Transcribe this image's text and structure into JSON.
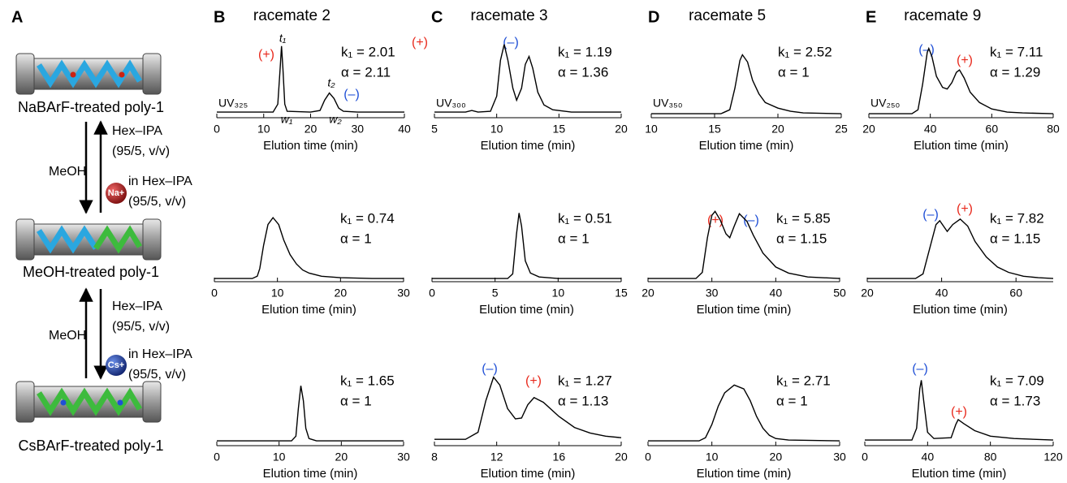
{
  "diagram": {
    "panel": "A",
    "states": [
      "NaBArF-treated poly-1",
      "MeOH-treated poly-1",
      "CsBArF-treated poly-1"
    ],
    "upper_steps": {
      "down": "MeOH",
      "up_line1": "Hex–IPA",
      "up_line2": "(95/5, v/v)",
      "ion": "Na+",
      "ion_line1": "in Hex–IPA",
      "ion_line2": "(95/5, v/v)"
    },
    "lower_steps": {
      "up": "MeOH",
      "down_line1": "Hex–IPA",
      "down_line2": "(95/5, v/v)",
      "ion": "Cs+",
      "ion_line1": "in Hex–IPA",
      "ion_line2": "(95/5, v/v)"
    }
  },
  "chart_data": [
    {
      "type": "line",
      "panel": "B",
      "title": "racemate 2",
      "x_label": "Elution time (min)",
      "detector": "UV₃₂₅",
      "k1_label": "k₁ = 2.01",
      "alpha_label": "α = 2.11",
      "peak_labels": [
        {
          "text": "(+)",
          "color": "#e8291c"
        },
        {
          "text": "(–)",
          "color": "#1f4fd6"
        }
      ],
      "peak_marks": [
        "t₁",
        "t₂",
        "w₁",
        "w₂"
      ],
      "xlim": [
        0,
        40
      ],
      "xticks": [
        0,
        10,
        20,
        30,
        40
      ],
      "ylim": [
        0,
        100
      ],
      "color": "#000000",
      "x": [
        0,
        8,
        12,
        13,
        13.5,
        13.8,
        14.1,
        14.5,
        15,
        20,
        22,
        23,
        24,
        25,
        26,
        27,
        30,
        40
      ],
      "values": [
        5,
        5,
        5,
        15,
        60,
        88,
        60,
        15,
        6,
        5,
        7,
        20,
        29,
        22,
        10,
        6,
        5,
        5
      ]
    },
    {
      "type": "line",
      "panel": "C",
      "title": "racemate 3",
      "x_label": "Elution time (min)",
      "detector": "UV₃₀₀",
      "k1_label": "k₁ = 1.19",
      "alpha_label": "α = 1.36",
      "peak_labels": [
        {
          "text": "(+)",
          "color": "#e8291c"
        },
        {
          "text": "(–)",
          "color": "#1f4fd6"
        }
      ],
      "xlim": [
        5,
        20
      ],
      "xticks": [
        5,
        10,
        15,
        20
      ],
      "ylim": [
        0,
        100
      ],
      "color": "#000000",
      "x": [
        5,
        7.5,
        8,
        8.5,
        9.5,
        10,
        10.3,
        10.6,
        10.9,
        11.3,
        11.6,
        12,
        12.3,
        12.6,
        12.9,
        13.3,
        13.8,
        14.5,
        16,
        20
      ],
      "values": [
        5,
        5,
        7,
        5,
        6,
        25,
        70,
        90,
        70,
        35,
        20,
        35,
        65,
        75,
        60,
        30,
        14,
        8,
        5,
        5
      ]
    },
    {
      "type": "line",
      "panel": "D",
      "title": "racemate 5",
      "x_label": "Elution time (min)",
      "detector": "UV₃₅₀",
      "k1_label": "k₁ = 2.52",
      "alpha_label": "α = 1",
      "xlim": [
        10,
        25
      ],
      "xticks": [
        10,
        15,
        20,
        25
      ],
      "ylim": [
        0,
        100
      ],
      "color": "#000000",
      "x": [
        10,
        15.5,
        16.2,
        16.6,
        17,
        17.2,
        17.6,
        18,
        18.5,
        19,
        20,
        21,
        22,
        25
      ],
      "values": [
        3,
        3,
        8,
        35,
        70,
        77,
        68,
        45,
        28,
        17,
        10,
        6,
        4,
        3
      ]
    },
    {
      "type": "line",
      "panel": "E",
      "title": "racemate 9",
      "x_label": "Elution time (min)",
      "detector": "UV₂₅₀",
      "k1_label": "k₁ = 7.11",
      "alpha_label": "α = 1.29",
      "peak_labels": [
        {
          "text": "(–)",
          "color": "#1f4fd6"
        },
        {
          "text": "(+)",
          "color": "#e8291c"
        }
      ],
      "xlim": [
        20,
        80
      ],
      "xticks": [
        20,
        40,
        60,
        80
      ],
      "ylim": [
        0,
        100
      ],
      "color": "#000000",
      "x": [
        20,
        34,
        36,
        37.5,
        39,
        39.5,
        40.5,
        42,
        44,
        45.5,
        47,
        48.5,
        49.5,
        51,
        53,
        56,
        60,
        65,
        70,
        80
      ],
      "values": [
        3,
        3,
        8,
        40,
        80,
        85,
        75,
        50,
        36,
        34,
        42,
        55,
        58,
        48,
        30,
        17,
        9,
        5,
        4,
        3
      ]
    },
    {
      "type": "line",
      "x_label": "Elution time (min)",
      "k1_label": "k₁ = 0.74",
      "alpha_label": "α = 1",
      "xlim": [
        0,
        30
      ],
      "xticks": [
        0,
        10,
        20,
        30
      ],
      "ylim": [
        0,
        100
      ],
      "color": "#000000",
      "x": [
        0,
        6,
        6.8,
        7.2,
        7.8,
        8.5,
        9.3,
        10.2,
        11,
        12,
        13,
        14,
        15,
        17,
        20,
        25,
        30
      ],
      "values": [
        2,
        2,
        5,
        15,
        45,
        72,
        81,
        72,
        52,
        33,
        21,
        13,
        9,
        5,
        3,
        2,
        2
      ]
    },
    {
      "type": "line",
      "x_label": "Elution time (min)",
      "k1_label": "k₁ = 0.51",
      "alpha_label": "α = 1",
      "xlim": [
        0,
        15
      ],
      "xticks": [
        0,
        5,
        10,
        15
      ],
      "ylim": [
        0,
        100
      ],
      "color": "#000000",
      "x": [
        0,
        6,
        6.4,
        6.7,
        6.9,
        7.1,
        7.4,
        7.8,
        8.5,
        10,
        15
      ],
      "values": [
        2,
        2,
        8,
        60,
        87,
        70,
        25,
        9,
        4,
        2,
        2
      ]
    },
    {
      "type": "line",
      "x_label": "Elution time (min)",
      "k1_label": "k₁ = 5.85",
      "alpha_label": "α = 1.15",
      "peak_labels": [
        {
          "text": "(+)",
          "color": "#e8291c"
        },
        {
          "text": "(–)",
          "color": "#1f4fd6"
        }
      ],
      "xlim": [
        20,
        50
      ],
      "xticks": [
        20,
        30,
        40,
        50
      ],
      "ylim": [
        0,
        100
      ],
      "color": "#000000",
      "x": [
        20,
        27.5,
        28.5,
        29.3,
        30,
        30.5,
        31.3,
        32.2,
        32.8,
        33.5,
        34.3,
        35.5,
        36.5,
        38,
        40,
        42,
        45,
        50
      ],
      "values": [
        2,
        2,
        10,
        55,
        84,
        89,
        78,
        60,
        55,
        70,
        86,
        76,
        58,
        35,
        17,
        9,
        4,
        2
      ]
    },
    {
      "type": "line",
      "x_label": "Elution time (min)",
      "k1_label": "k₁ = 7.82",
      "alpha_label": "α = 1.15",
      "peak_labels": [
        {
          "text": "(–)",
          "color": "#1f4fd6"
        },
        {
          "text": "(+)",
          "color": "#e8291c"
        }
      ],
      "xlim": [
        20,
        70
      ],
      "xticks": [
        20,
        40,
        60
      ],
      "ylim": [
        0,
        100
      ],
      "color": "#000000",
      "x": [
        20,
        33,
        35,
        37,
        38.5,
        39.5,
        40.5,
        41.5,
        43,
        45,
        47,
        49,
        52,
        55,
        58,
        62,
        66,
        70
      ],
      "values": [
        2,
        2,
        8,
        45,
        72,
        77,
        70,
        63,
        72,
        79,
        70,
        50,
        30,
        17,
        10,
        5,
        3,
        2
      ]
    },
    {
      "type": "line",
      "x_label": "Elution time (min)",
      "k1_label": "k₁ = 1.65",
      "alpha_label": "α = 1",
      "xlim": [
        0,
        30
      ],
      "xticks": [
        0,
        10,
        20,
        30
      ],
      "ylim": [
        0,
        100
      ],
      "color": "#000000",
      "x": [
        0,
        12,
        12.7,
        13.1,
        13.5,
        13.9,
        14.3,
        14.8,
        16,
        30
      ],
      "values": [
        4,
        4,
        10,
        45,
        74,
        55,
        20,
        7,
        4,
        4
      ]
    },
    {
      "type": "line",
      "x_label": "Elution time (min)",
      "k1_label": "k₁ = 1.27",
      "alpha_label": "α = 1.13",
      "peak_labels": [
        {
          "text": "(–)",
          "color": "#1f4fd6"
        },
        {
          "text": "(+)",
          "color": "#e8291c"
        }
      ],
      "xlim": [
        8,
        20
      ],
      "xticks": [
        8,
        12,
        16,
        20
      ],
      "ylim": [
        0,
        100
      ],
      "color": "#000000",
      "x": [
        8,
        10,
        10.8,
        11.3,
        11.8,
        12.2,
        12.7,
        13.2,
        13.6,
        14,
        14.4,
        15,
        16,
        17,
        18,
        19,
        20
      ],
      "values": [
        6,
        6,
        15,
        55,
        85,
        75,
        45,
        32,
        33,
        50,
        59,
        53,
        35,
        21,
        14,
        10,
        8
      ]
    },
    {
      "type": "line",
      "x_label": "Elution time (min)",
      "k1_label": "k₁ = 2.71",
      "alpha_label": "α = 1",
      "xlim": [
        0,
        30
      ],
      "xticks": [
        0,
        10,
        20,
        30
      ],
      "ylim": [
        0,
        100
      ],
      "color": "#000000",
      "x": [
        0,
        8,
        9,
        10,
        11,
        12,
        13.5,
        15,
        16,
        17,
        18,
        19,
        20,
        22,
        30
      ],
      "values": [
        4,
        4,
        8,
        25,
        48,
        65,
        75,
        70,
        55,
        35,
        20,
        11,
        7,
        5,
        4
      ]
    },
    {
      "type": "line",
      "x_label": "Elution time (min)",
      "k1_label": "k₁ = 7.09",
      "alpha_label": "α = 1.73",
      "peak_labels": [
        {
          "text": "(–)",
          "color": "#1f4fd6"
        },
        {
          "text": "(+)",
          "color": "#e8291c"
        }
      ],
      "xlim": [
        0,
        120
      ],
      "xticks": [
        0,
        40,
        80,
        120
      ],
      "ylim": [
        0,
        100
      ],
      "color": "#000000",
      "x": [
        0,
        30,
        33,
        35,
        36,
        37.5,
        40,
        44,
        55,
        58,
        59.5,
        63,
        70,
        80,
        95,
        120
      ],
      "values": [
        5,
        5,
        20,
        70,
        81,
        55,
        15,
        7,
        8,
        25,
        31,
        26,
        17,
        10,
        7,
        5
      ]
    }
  ]
}
